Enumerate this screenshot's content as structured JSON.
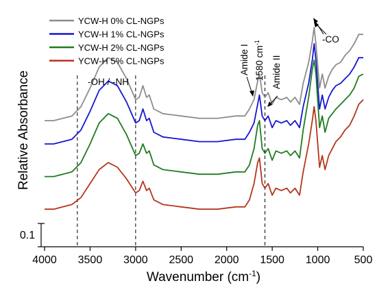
{
  "chart_data": {
    "type": "line",
    "xlabel": "Wavenumber (cm",
    "xlabel_sup": "-1",
    "xlabel_end": ")",
    "ylabel": "Relative Absorbance",
    "xlim": [
      4000,
      500
    ],
    "x_reversed": true,
    "x_ticks": [
      4000,
      3500,
      3000,
      2500,
      2000,
      1500,
      1000,
      500
    ],
    "scale_bar_label": "0.1",
    "scale_bar_value": 0.1,
    "legend_position": "top-left",
    "series": [
      {
        "name": "YCW-H 0% CL-NGPs",
        "color": "#8c8c8c",
        "points": [
          [
            4000,
            0.6
          ],
          [
            3900,
            0.6
          ],
          [
            3800,
            0.61
          ],
          [
            3700,
            0.62
          ],
          [
            3600,
            0.66
          ],
          [
            3500,
            0.74
          ],
          [
            3400,
            0.83
          ],
          [
            3300,
            0.87
          ],
          [
            3200,
            0.85
          ],
          [
            3100,
            0.78
          ],
          [
            3000,
            0.69
          ],
          [
            2960,
            0.7
          ],
          [
            2920,
            0.75
          ],
          [
            2880,
            0.7
          ],
          [
            2850,
            0.71
          ],
          [
            2800,
            0.65
          ],
          [
            2700,
            0.63
          ],
          [
            2500,
            0.62
          ],
          [
            2300,
            0.61
          ],
          [
            2100,
            0.61
          ],
          [
            1900,
            0.62
          ],
          [
            1800,
            0.62
          ],
          [
            1750,
            0.65
          ],
          [
            1700,
            0.69
          ],
          [
            1660,
            0.77
          ],
          [
            1640,
            0.8
          ],
          [
            1610,
            0.72
          ],
          [
            1580,
            0.7
          ],
          [
            1545,
            0.72
          ],
          [
            1500,
            0.67
          ],
          [
            1460,
            0.7
          ],
          [
            1400,
            0.69
          ],
          [
            1340,
            0.7
          ],
          [
            1300,
            0.68
          ],
          [
            1250,
            0.7
          ],
          [
            1200,
            0.67
          ],
          [
            1160,
            0.76
          ],
          [
            1100,
            0.85
          ],
          [
            1060,
            0.94
          ],
          [
            1040,
            1.0
          ],
          [
            1020,
            0.93
          ],
          [
            980,
            0.74
          ],
          [
            950,
            0.8
          ],
          [
            920,
            0.74
          ],
          [
            880,
            0.79
          ],
          [
            840,
            0.82
          ],
          [
            800,
            0.84
          ],
          [
            750,
            0.85
          ],
          [
            700,
            0.88
          ],
          [
            650,
            0.9
          ],
          [
            600,
            0.93
          ],
          [
            550,
            0.97
          ],
          [
            500,
            0.97
          ]
        ]
      },
      {
        "name": "YCW-H 1% CL-NGPs",
        "color": "#1414d2",
        "points": [
          [
            4000,
            0.5
          ],
          [
            3900,
            0.5
          ],
          [
            3800,
            0.51
          ],
          [
            3700,
            0.52
          ],
          [
            3600,
            0.56
          ],
          [
            3500,
            0.64
          ],
          [
            3400,
            0.73
          ],
          [
            3300,
            0.77
          ],
          [
            3200,
            0.75
          ],
          [
            3100,
            0.68
          ],
          [
            3000,
            0.59
          ],
          [
            2960,
            0.6
          ],
          [
            2920,
            0.65
          ],
          [
            2880,
            0.6
          ],
          [
            2850,
            0.61
          ],
          [
            2800,
            0.55
          ],
          [
            2700,
            0.53
          ],
          [
            2500,
            0.52
          ],
          [
            2300,
            0.51
          ],
          [
            2100,
            0.51
          ],
          [
            1900,
            0.52
          ],
          [
            1800,
            0.52
          ],
          [
            1750,
            0.55
          ],
          [
            1700,
            0.59
          ],
          [
            1660,
            0.67
          ],
          [
            1640,
            0.71
          ],
          [
            1610,
            0.62
          ],
          [
            1580,
            0.6
          ],
          [
            1545,
            0.62
          ],
          [
            1500,
            0.57
          ],
          [
            1460,
            0.6
          ],
          [
            1400,
            0.59
          ],
          [
            1340,
            0.6
          ],
          [
            1300,
            0.58
          ],
          [
            1250,
            0.6
          ],
          [
            1200,
            0.57
          ],
          [
            1160,
            0.66
          ],
          [
            1100,
            0.76
          ],
          [
            1060,
            0.86
          ],
          [
            1040,
            0.93
          ],
          [
            1020,
            0.86
          ],
          [
            980,
            0.65
          ],
          [
            950,
            0.71
          ],
          [
            920,
            0.65
          ],
          [
            880,
            0.7
          ],
          [
            840,
            0.73
          ],
          [
            800,
            0.75
          ],
          [
            750,
            0.76
          ],
          [
            700,
            0.78
          ],
          [
            650,
            0.8
          ],
          [
            600,
            0.83
          ],
          [
            550,
            0.87
          ],
          [
            500,
            0.87
          ]
        ]
      },
      {
        "name": "YCW-H 2% CL-NGPs",
        "color": "#1e7b1e",
        "points": [
          [
            4000,
            0.36
          ],
          [
            3900,
            0.36
          ],
          [
            3800,
            0.37
          ],
          [
            3700,
            0.38
          ],
          [
            3600,
            0.42
          ],
          [
            3500,
            0.5
          ],
          [
            3400,
            0.59
          ],
          [
            3300,
            0.63
          ],
          [
            3200,
            0.61
          ],
          [
            3100,
            0.54
          ],
          [
            3000,
            0.45
          ],
          [
            2960,
            0.46
          ],
          [
            2920,
            0.5
          ],
          [
            2880,
            0.46
          ],
          [
            2850,
            0.47
          ],
          [
            2800,
            0.41
          ],
          [
            2700,
            0.39
          ],
          [
            2500,
            0.38
          ],
          [
            2300,
            0.37
          ],
          [
            2100,
            0.37
          ],
          [
            1900,
            0.38
          ],
          [
            1800,
            0.38
          ],
          [
            1750,
            0.41
          ],
          [
            1700,
            0.48
          ],
          [
            1660,
            0.58
          ],
          [
            1640,
            0.6
          ],
          [
            1610,
            0.48
          ],
          [
            1580,
            0.46
          ],
          [
            1545,
            0.48
          ],
          [
            1500,
            0.43
          ],
          [
            1460,
            0.47
          ],
          [
            1400,
            0.46
          ],
          [
            1340,
            0.47
          ],
          [
            1300,
            0.45
          ],
          [
            1250,
            0.47
          ],
          [
            1200,
            0.44
          ],
          [
            1160,
            0.56
          ],
          [
            1100,
            0.7
          ],
          [
            1060,
            0.82
          ],
          [
            1040,
            0.86
          ],
          [
            1020,
            0.8
          ],
          [
            980,
            0.57
          ],
          [
            950,
            0.62
          ],
          [
            920,
            0.55
          ],
          [
            880,
            0.61
          ],
          [
            840,
            0.63
          ],
          [
            800,
            0.65
          ],
          [
            750,
            0.67
          ],
          [
            700,
            0.69
          ],
          [
            650,
            0.71
          ],
          [
            600,
            0.74
          ],
          [
            550,
            0.79
          ],
          [
            500,
            0.8
          ]
        ]
      },
      {
        "name": "YCW-H 5% CL-NGPs",
        "color": "#b5341b",
        "points": [
          [
            4000,
            0.22
          ],
          [
            3900,
            0.22
          ],
          [
            3800,
            0.23
          ],
          [
            3700,
            0.24
          ],
          [
            3600,
            0.27
          ],
          [
            3500,
            0.33
          ],
          [
            3400,
            0.39
          ],
          [
            3300,
            0.42
          ],
          [
            3200,
            0.4
          ],
          [
            3100,
            0.35
          ],
          [
            3000,
            0.29
          ],
          [
            2960,
            0.3
          ],
          [
            2920,
            0.34
          ],
          [
            2880,
            0.3
          ],
          [
            2850,
            0.31
          ],
          [
            2800,
            0.26
          ],
          [
            2700,
            0.24
          ],
          [
            2500,
            0.23
          ],
          [
            2300,
            0.22
          ],
          [
            2100,
            0.22
          ],
          [
            1900,
            0.23
          ],
          [
            1800,
            0.23
          ],
          [
            1750,
            0.26
          ],
          [
            1700,
            0.33
          ],
          [
            1660,
            0.42
          ],
          [
            1640,
            0.44
          ],
          [
            1610,
            0.33
          ],
          [
            1580,
            0.31
          ],
          [
            1545,
            0.33
          ],
          [
            1500,
            0.28
          ],
          [
            1460,
            0.31
          ],
          [
            1400,
            0.3
          ],
          [
            1340,
            0.31
          ],
          [
            1300,
            0.29
          ],
          [
            1250,
            0.31
          ],
          [
            1200,
            0.28
          ],
          [
            1160,
            0.38
          ],
          [
            1100,
            0.5
          ],
          [
            1060,
            0.6
          ],
          [
            1040,
            0.66
          ],
          [
            1020,
            0.6
          ],
          [
            980,
            0.4
          ],
          [
            950,
            0.45
          ],
          [
            920,
            0.39
          ],
          [
            880,
            0.45
          ],
          [
            840,
            0.48
          ],
          [
            800,
            0.51
          ],
          [
            750,
            0.53
          ],
          [
            700,
            0.56
          ],
          [
            650,
            0.58
          ],
          [
            600,
            0.62
          ],
          [
            550,
            0.67
          ],
          [
            500,
            0.69
          ]
        ]
      }
    ],
    "vlines": [
      3640,
      3000,
      1580
    ],
    "annotations": {
      "oh_nh": "-OH / -NH",
      "amide_i": "Amide I",
      "wn_1580": "1580 cm",
      "wn_1580_sup": "-1",
      "amide_ii": "Amide II",
      "co": "-CO"
    }
  }
}
